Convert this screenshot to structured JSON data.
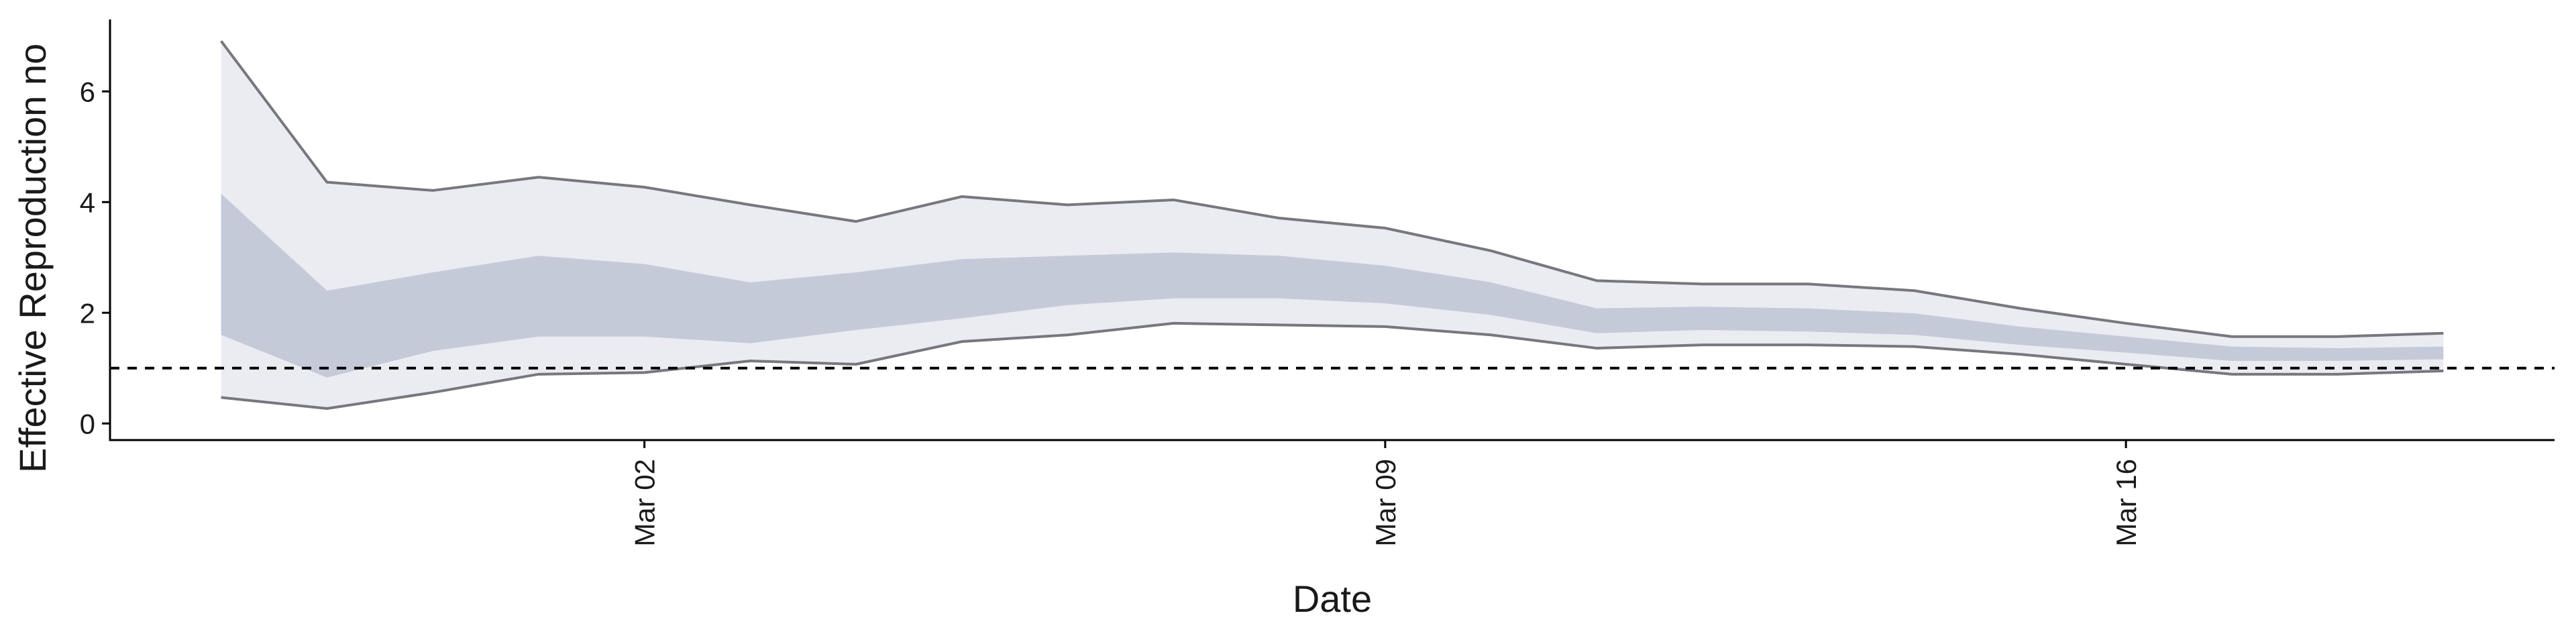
{
  "chart_data": {
    "type": "band",
    "x_label": "Date",
    "y_label": "Effective Reproduction no",
    "x": [
      "Feb 27",
      "Feb 28",
      "Feb 29",
      "Mar 01",
      "Mar 02",
      "Mar 03",
      "Mar 04",
      "Mar 05",
      "Mar 06",
      "Mar 07",
      "Mar 08",
      "Mar 09",
      "Mar 10",
      "Mar 11",
      "Mar 12",
      "Mar 13",
      "Mar 14",
      "Mar 15",
      "Mar 16",
      "Mar 17",
      "Mar 18",
      "Mar 19"
    ],
    "bands": [
      {
        "color": "#ebebf2",
        "line_color": "#77777d",
        "lower": [
          0.47,
          0.27,
          0.56,
          0.89,
          0.92,
          1.13,
          1.07,
          1.48,
          1.6,
          1.81,
          1.78,
          1.75,
          1.6,
          1.36,
          1.42,
          1.42,
          1.39,
          1.25,
          1.07,
          0.89,
          0.89,
          0.95
        ],
        "upper": [
          6.91,
          4.36,
          4.21,
          4.45,
          4.27,
          3.95,
          3.65,
          4.1,
          3.95,
          4.04,
          3.71,
          3.53,
          3.12,
          2.58,
          2.52,
          2.52,
          2.4,
          2.08,
          1.81,
          1.57,
          1.57,
          1.63
        ]
      },
      {
        "color": "#c5cad9",
        "lower": [
          1.6,
          0.83,
          1.31,
          1.57,
          1.57,
          1.45,
          1.69,
          1.9,
          2.14,
          2.26,
          2.26,
          2.17,
          1.96,
          1.63,
          1.69,
          1.66,
          1.6,
          1.42,
          1.28,
          1.13,
          1.13,
          1.16
        ],
        "upper": [
          4.15,
          2.4,
          2.73,
          3.03,
          2.88,
          2.55,
          2.73,
          2.97,
          3.03,
          3.09,
          3.03,
          2.85,
          2.55,
          2.08,
          2.11,
          2.08,
          1.99,
          1.75,
          1.57,
          1.39,
          1.36,
          1.39
        ]
      }
    ],
    "hline": 1,
    "ylim": [
      -0.3,
      7.3
    ],
    "yticks": [
      0,
      2,
      4,
      6
    ],
    "xticks": [
      "Mar 02",
      "Mar 09",
      "Mar 16"
    ]
  }
}
